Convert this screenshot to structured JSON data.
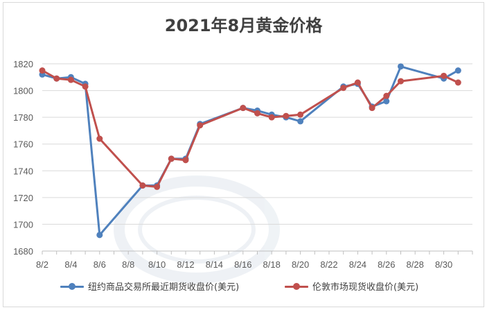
{
  "chart_data": {
    "type": "line",
    "title": "2021年8月黄金价格",
    "xlabel": "",
    "ylabel": "",
    "ylim": [
      1680,
      1820
    ],
    "yticks": [
      1680,
      1700,
      1720,
      1740,
      1760,
      1780,
      1800,
      1820
    ],
    "xlim": [
      2,
      32
    ],
    "xticks": [
      "8/2",
      "8/4",
      "8/6",
      "8/8",
      "8/10",
      "8/12",
      "8/14",
      "8/16",
      "8/18",
      "8/20",
      "8/22",
      "8/24",
      "8/26",
      "8/28",
      "8/30"
    ],
    "legend_position": "bottom",
    "grid": true,
    "series": [
      {
        "name": "纽约商品交易所最近期货收盘价(美元)",
        "color": "#4f81bd",
        "points": [
          [
            "8/2",
            1812
          ],
          [
            "8/3",
            1809
          ],
          [
            "8/4",
            1810
          ],
          [
            "8/5",
            1805
          ],
          [
            "8/6",
            1692
          ],
          [
            "8/9",
            1729
          ],
          [
            "8/10",
            1729
          ],
          [
            "8/11",
            1749
          ],
          [
            "8/12",
            1749
          ],
          [
            "8/13",
            1775
          ],
          [
            "8/16",
            1787
          ],
          [
            "8/17",
            1785
          ],
          [
            "8/18",
            1782
          ],
          [
            "8/19",
            1780
          ],
          [
            "8/20",
            1777
          ],
          [
            "8/23",
            1803
          ],
          [
            "8/24",
            1805
          ],
          [
            "8/25",
            1788
          ],
          [
            "8/26",
            1792
          ],
          [
            "8/27",
            1818
          ],
          [
            "8/30",
            1809
          ],
          [
            "8/31",
            1815
          ]
        ]
      },
      {
        "name": "伦敦市场现货收盘价(美元)",
        "color": "#c0504d",
        "points": [
          [
            "8/2",
            1815
          ],
          [
            "8/3",
            1809
          ],
          [
            "8/4",
            1808
          ],
          [
            "8/5",
            1803
          ],
          [
            "8/6",
            1764
          ],
          [
            "8/9",
            1729
          ],
          [
            "8/10",
            1728
          ],
          [
            "8/11",
            1749
          ],
          [
            "8/12",
            1748
          ],
          [
            "8/13",
            1774
          ],
          [
            "8/16",
            1787
          ],
          [
            "8/17",
            1783
          ],
          [
            "8/18",
            1780
          ],
          [
            "8/19",
            1781
          ],
          [
            "8/20",
            1782
          ],
          [
            "8/23",
            1802
          ],
          [
            "8/24",
            1806
          ],
          [
            "8/25",
            1787
          ],
          [
            "8/26",
            1796
          ],
          [
            "8/27",
            1807
          ],
          [
            "8/30",
            1811
          ],
          [
            "8/31",
            1806
          ]
        ]
      }
    ]
  }
}
